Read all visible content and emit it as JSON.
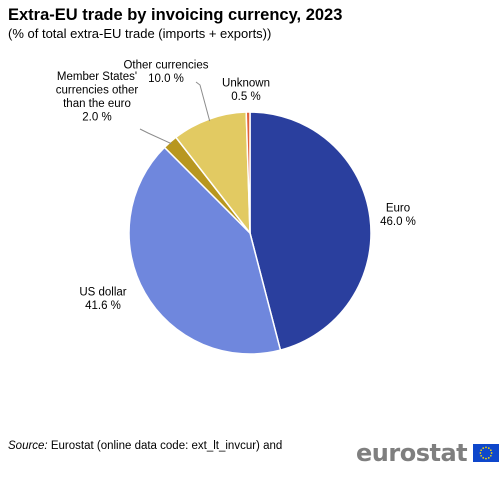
{
  "header": {
    "title": "Extra-EU trade by invoicing currency, 2023",
    "subtitle": "(% of total extra-EU trade (imports + exports))"
  },
  "chart_data": {
    "type": "pie",
    "title": "Extra-EU trade by invoicing currency, 2023",
    "subtitle": "(% of total extra-EU trade (imports + exports))",
    "slices": [
      {
        "name": "Euro",
        "label_lines": [
          "Euro"
        ],
        "value": 46.0,
        "value_label": "46.0 %",
        "color": "#2a3f9e"
      },
      {
        "name": "US dollar",
        "label_lines": [
          "US dollar"
        ],
        "value": 41.6,
        "value_label": "41.6 %",
        "color": "#6f87dd"
      },
      {
        "name": "Member States' currencies other than the euro",
        "label_lines": [
          "Member States'",
          "currencies other",
          "than the euro"
        ],
        "value": 2.0,
        "value_label": "2.0 %",
        "color": "#b8971f"
      },
      {
        "name": "Other currencies",
        "label_lines": [
          "Other currencies"
        ],
        "value": 10.0,
        "value_label": "10.0 %",
        "color": "#e2ca62"
      },
      {
        "name": "Unknown",
        "label_lines": [
          "Unknown"
        ],
        "value": 0.5,
        "value_label": "0.5 %",
        "color": "#e0613a"
      }
    ]
  },
  "footer": {
    "source_prefix": "Source:",
    "source_text": " Eurostat (online data code: ext_lt_invcur)  and",
    "logo_text": "eurostat"
  }
}
